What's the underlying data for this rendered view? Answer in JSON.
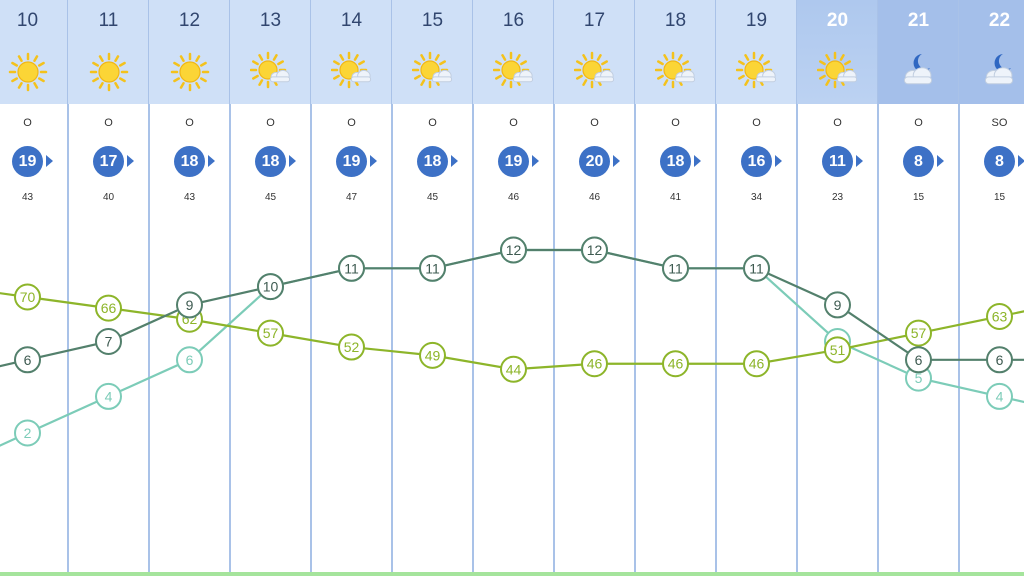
{
  "colors": {
    "header_bg": "#cfe0f7",
    "header_bg_night": "#a4bfea",
    "divider": "#a9c2e8",
    "wind_badge": "#3d71c6",
    "humidity_line": "#8db52a",
    "temperature_line": "#53806c",
    "feels_like_line": "#7cccb8",
    "bottom_line": "#a5e49c"
  },
  "hours": [
    {
      "hour": "10",
      "sky": "sunny-icon",
      "wind_dir": "O",
      "wind_speed": "19",
      "gust": "43",
      "period": "day"
    },
    {
      "hour": "11",
      "sky": "sunny-icon",
      "wind_dir": "O",
      "wind_speed": "17",
      "gust": "40",
      "period": "day"
    },
    {
      "hour": "12",
      "sky": "sunny-icon",
      "wind_dir": "O",
      "wind_speed": "18",
      "gust": "43",
      "period": "day"
    },
    {
      "hour": "13",
      "sky": "sun-cloud-icon",
      "wind_dir": "O",
      "wind_speed": "18",
      "gust": "45",
      "period": "day"
    },
    {
      "hour": "14",
      "sky": "sun-cloud-icon",
      "wind_dir": "O",
      "wind_speed": "19",
      "gust": "47",
      "period": "day"
    },
    {
      "hour": "15",
      "sky": "sun-cloud-icon",
      "wind_dir": "O",
      "wind_speed": "18",
      "gust": "45",
      "period": "day"
    },
    {
      "hour": "16",
      "sky": "sun-cloud-icon",
      "wind_dir": "O",
      "wind_speed": "19",
      "gust": "46",
      "period": "day"
    },
    {
      "hour": "17",
      "sky": "sun-cloud-icon",
      "wind_dir": "O",
      "wind_speed": "20",
      "gust": "46",
      "period": "day"
    },
    {
      "hour": "18",
      "sky": "sun-cloud-icon",
      "wind_dir": "O",
      "wind_speed": "18",
      "gust": "41",
      "period": "day"
    },
    {
      "hour": "19",
      "sky": "sun-cloud-icon",
      "wind_dir": "O",
      "wind_speed": "16",
      "gust": "34",
      "period": "day"
    },
    {
      "hour": "20",
      "sky": "sun-cloud-icon",
      "wind_dir": "O",
      "wind_speed": "11",
      "gust": "23",
      "period": "dusk"
    },
    {
      "hour": "21",
      "sky": "moon-cloud-icon",
      "wind_dir": "O",
      "wind_speed": "8",
      "gust": "15",
      "period": "night"
    },
    {
      "hour": "22",
      "sky": "moon-cloud-icon",
      "wind_dir": "SO",
      "wind_speed": "8",
      "gust": "15",
      "period": "night"
    }
  ],
  "chart_data": {
    "type": "line",
    "categories": [
      "10",
      "11",
      "12",
      "13",
      "14",
      "15",
      "16",
      "17",
      "18",
      "19",
      "20",
      "21",
      "22"
    ],
    "series": [
      {
        "key": "humidity",
        "color": "#8db52a",
        "values": [
          70,
          66,
          62,
          57,
          52,
          49,
          44,
          46,
          46,
          46,
          51,
          57,
          63
        ]
      },
      {
        "key": "temperature",
        "color": "#53806c",
        "values": [
          6,
          7,
          9,
          10,
          11,
          11,
          12,
          12,
          11,
          11,
          9,
          6,
          6
        ]
      },
      {
        "key": "feels_like",
        "color": "#7cccb8",
        "values": [
          2,
          4,
          6,
          10,
          11,
          11,
          12,
          12,
          11,
          11,
          7,
          5,
          4
        ]
      }
    ],
    "grid": "vertical",
    "legend": "none"
  }
}
